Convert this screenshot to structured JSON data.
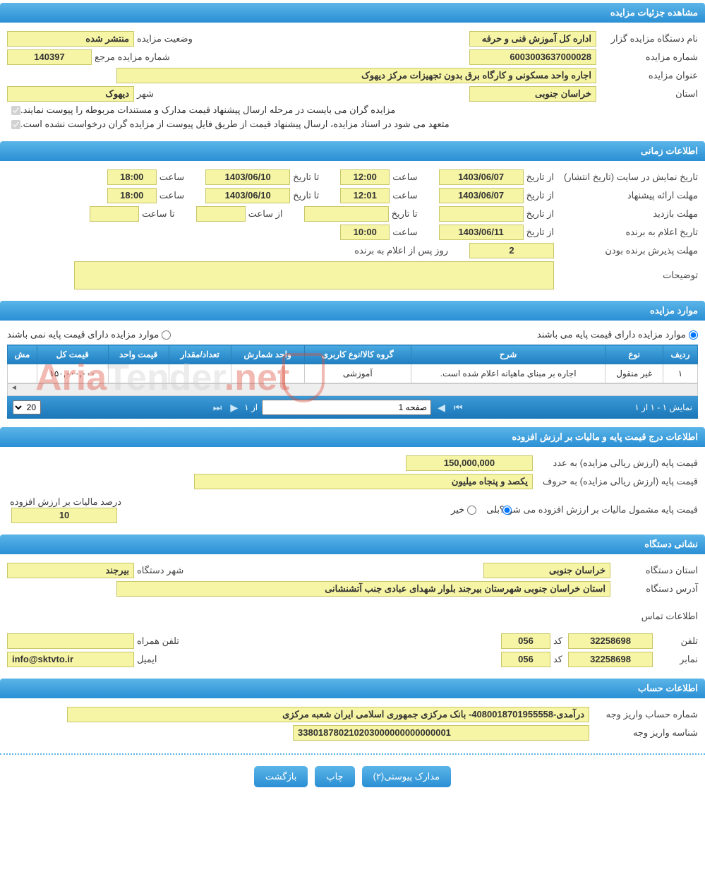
{
  "sections": {
    "details_header": "مشاهده جزئیات مزایده",
    "time_header": "اطلاعات زمانی",
    "items_header": "موارد مزایده",
    "price_header": "اطلاعات درج قیمت پایه و مالیات بر ارزش افزوده",
    "org_header": "نشانی دستگاه",
    "account_header": "اطلاعات حساب"
  },
  "details": {
    "org_label": "نام دستگاه مزایده گزار",
    "org_value": "اداره کل آموزش فنی و حرفه",
    "status_label": "وضعیت مزایده",
    "status_value": "منتشر شده",
    "auction_no_label": "شماره مزایده",
    "auction_no_value": "6003003637000028",
    "ref_no_label": "شماره مزایده مرجع",
    "ref_no_value": "140397",
    "title_label": "عنوان مزایده",
    "title_value": "اجاره واحد مسکونی و کارگاه برق بدون تجهیزات مرکز دیهوک",
    "province_label": "استان",
    "province_value": "خراسان جنوبی",
    "city_label": "شهر",
    "city_value": "دیهوک",
    "check1": "مزایده گران می بایست در مرحله ارسال پیشنهاد قیمت مدارک و مستندات مربوطه را پیوست نمایند.",
    "check2": "متعهد می شود در اسناد مزایده، ارسال پیشنهاد قیمت از طریق فایل پیوست از مزایده گران درخواست نشده است."
  },
  "time": {
    "publish_label": "تاریخ نمایش در سایت (تاریخ انتشار)",
    "from_label": "از تاریخ",
    "to_label": "تا تاریخ",
    "hour_label": "ساعت",
    "to_hour_label": "تا ساعت",
    "from_hour_label": "از ساعت",
    "publish_from_date": "1403/06/07",
    "publish_from_hour": "12:00",
    "publish_to_date": "1403/06/10",
    "publish_to_hour": "18:00",
    "offer_label": "مهلت ارائه پیشنهاد",
    "offer_from_date": "1403/06/07",
    "offer_from_hour": "12:01",
    "offer_to_date": "1403/06/10",
    "offer_to_hour": "18:00",
    "visit_label": "مهلت بازدید",
    "winner_label": "تاریخ اعلام به برنده",
    "winner_date": "1403/06/11",
    "winner_hour": "10:00",
    "accept_label": "مهلت پذیرش برنده بودن",
    "accept_days": "2",
    "accept_suffix": "روز پس از اعلام به برنده",
    "desc_label": "توضیحات"
  },
  "items": {
    "has_base_label": "موارد مزایده دارای قیمت پایه می باشند",
    "no_base_label": "موارد مزایده دارای قیمت پایه نمی باشند",
    "columns": [
      "ردیف",
      "نوع",
      "شرح",
      "گروه کالا/نوع کاربری",
      "واحد شمارش",
      "تعداد/مقدار",
      "قیمت واحد",
      "قیمت کل",
      "مش"
    ],
    "rows": [
      [
        "۱",
        "غیر منقول",
        "اجاره بر مبنای ماهیانه اعلام شده است.",
        "آموزشی",
        "",
        "",
        "",
        "۱۵۰,۰۰۰,۰۰۰",
        ""
      ]
    ],
    "pager_display": "نمایش ۱ - ۱ از ۱",
    "pager_of": "از ۱",
    "pager_page_value": "صفحه 1",
    "page_size": "20"
  },
  "price": {
    "base_num_label": "قیمت پایه (ارزش ریالی مزایده) به عدد",
    "base_num_value": "150,000,000",
    "base_word_label": "قیمت پایه (ارزش ریالی مزایده) به حروف",
    "base_word_value": "یکصد و پنجاه میلیون",
    "vat_q": "قیمت پایه مشمول مالیات بر ارزش افزوده می شود؟",
    "yes": "بلی",
    "no": "خیر",
    "vat_pct_label": "درصد مالیات بر ارزش افزوده",
    "vat_pct_value": "10"
  },
  "org": {
    "province_label": "استان دستگاه",
    "province_value": "خراسان جنوبی",
    "city_label": "شهر دستگاه",
    "city_value": "بیرجند",
    "address_label": "آدرس دستگاه",
    "address_value": "استان خراسان جنوبی شهرستان بیرجند بلوار شهدای عبادی جنب آتشنشانی",
    "contact_title": "اطلاعات تماس",
    "phone_label": "تلفن",
    "phone_value": "32258698",
    "code_label": "کد",
    "phone_code": "056",
    "mobile_label": "تلفن همراه",
    "fax_label": "نمابر",
    "fax_value": "32258698",
    "fax_code": "056",
    "email_label": "ایمیل",
    "email_value": "info@sktvto.ir"
  },
  "account": {
    "acc_label": "شماره حساب واریز وجه",
    "acc_value": "درآمدی-4080018701955558- بانک مرکزی جمهوری اسلامی ایران شعبه مرکزی",
    "id_label": "شناسه واریز وجه",
    "id_value": "338018780210203000000000000001"
  },
  "buttons": {
    "attachments": "مدارک پیوستی(۲)",
    "print": "چاپ",
    "back": "بازگشت"
  },
  "watermark": "AriaTender.net"
}
